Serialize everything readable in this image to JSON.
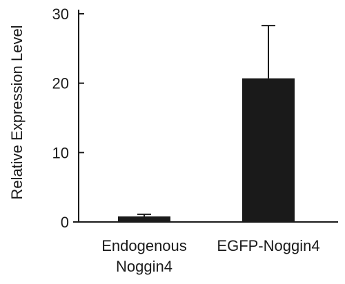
{
  "chart_data": {
    "type": "bar",
    "title": "",
    "xlabel": "",
    "ylabel": "Relative Expression Level",
    "ylim": [
      0,
      30
    ],
    "yticks": [
      0,
      10,
      20,
      30
    ],
    "grid": false,
    "categories": [
      [
        "Endogenous",
        "Noggin4"
      ],
      [
        "EGFP-Noggin4"
      ]
    ],
    "values": [
      0.8,
      20.7
    ],
    "error_upper": [
      0.3,
      7.6
    ],
    "bar_color": "#1a1a1a"
  }
}
